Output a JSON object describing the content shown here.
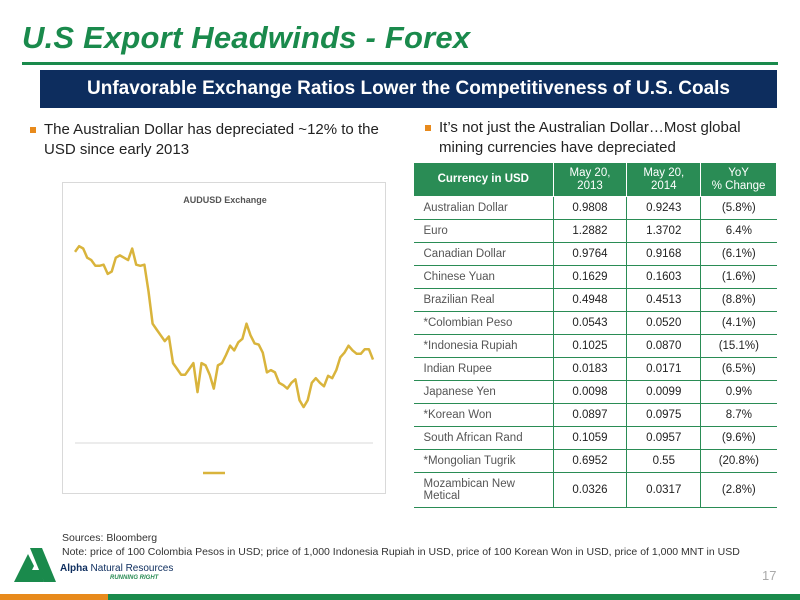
{
  "slide": {
    "title": "U.S Export Headwinds - Forex",
    "banner": "Unfavorable Exchange Ratios Lower the Competitiveness of U.S. Coals",
    "bullet_left": "The Australian Dollar has depreciated ~12% to the USD since early 2013",
    "bullet_right": "It’s not just the Australian Dollar…Most global mining currencies have depreciated",
    "page_number": "17"
  },
  "chart_data": {
    "type": "line",
    "title": "AUDUSD Exchange",
    "xlabel": "",
    "ylabel": "",
    "ylim": [
      0.88,
      1.07
    ],
    "grid": false,
    "legend": "bottom-center",
    "series": [
      {
        "color": "#d9b43c",
        "values": [
          1.045,
          1.05,
          1.048,
          1.04,
          1.038,
          1.033,
          1.033,
          1.034,
          1.026,
          1.028,
          1.04,
          1.042,
          1.04,
          1.038,
          1.048,
          1.034,
          1.033,
          1.034,
          1.011,
          0.983,
          0.978,
          0.973,
          0.968,
          0.972,
          0.949,
          0.944,
          0.939,
          0.939,
          0.944,
          0.949,
          0.924,
          0.949,
          0.947,
          0.939,
          0.927,
          0.947,
          0.949,
          0.956,
          0.964,
          0.96,
          0.967,
          0.97,
          0.983,
          0.973,
          0.966,
          0.965,
          0.958,
          0.941,
          0.943,
          0.941,
          0.932,
          0.93,
          0.927,
          0.932,
          0.935,
          0.917,
          0.911,
          0.917,
          0.932,
          0.936,
          0.932,
          0.929,
          0.938,
          0.936,
          0.943,
          0.954,
          0.958,
          0.964,
          0.96,
          0.957,
          0.957,
          0.961,
          0.961,
          0.952
        ]
      }
    ]
  },
  "table": {
    "headers": [
      "Currency in USD",
      "May 20,\n2013",
      "May 20,\n2014",
      "YoY\n% Change"
    ],
    "rows": [
      [
        "Australian Dollar",
        "0.9808",
        "0.9243",
        "(5.8%)"
      ],
      [
        "Euro",
        "1.2882",
        "1.3702",
        "6.4%"
      ],
      [
        "Canadian Dollar",
        "0.9764",
        "0.9168",
        "(6.1%)"
      ],
      [
        "Chinese Yuan",
        "0.1629",
        "0.1603",
        "(1.6%)"
      ],
      [
        "Brazilian Real",
        "0.4948",
        "0.4513",
        "(8.8%)"
      ],
      [
        "*Colombian Peso",
        "0.0543",
        "0.0520",
        "(4.1%)"
      ],
      [
        "*Indonesia Rupiah",
        "0.1025",
        "0.0870",
        "(15.1%)"
      ],
      [
        "Indian Rupee",
        "0.0183",
        "0.0171",
        "(6.5%)"
      ],
      [
        "Japanese Yen",
        "0.0098",
        "0.0099",
        "0.9%"
      ],
      [
        "*Korean Won",
        "0.0897",
        "0.0975",
        "8.7%"
      ],
      [
        "South African Rand",
        "0.1059",
        "0.0957",
        "(9.6%)"
      ],
      [
        "*Mongolian Tugrik",
        "0.6952",
        "0.55",
        "(20.8%)"
      ],
      [
        "Mozambican New Metical",
        "0.0326",
        "0.0317",
        "(2.8%)"
      ]
    ]
  },
  "footer": {
    "sources": "Sources: Bloomberg",
    "note": "Note: price of 100 Colombia Pesos in USD; price of 1,000 Indonesia Rupiah in USD, price of 100 Korean Won in USD, price of 1,000 MNT in USD",
    "logo_name_bold": "Alpha",
    "logo_name_rest": " Natural Resources",
    "logo_tagline": "RUNNING RIGHT"
  },
  "colors": {
    "title_green": "#1a8a4c",
    "banner_navy": "#0d2d5e",
    "table_header_green": "#2a8c55",
    "bullet_orange": "#e88a1c",
    "line_gold": "#d9b43c"
  },
  "icons": [
    "logo-triangle-icon"
  ]
}
